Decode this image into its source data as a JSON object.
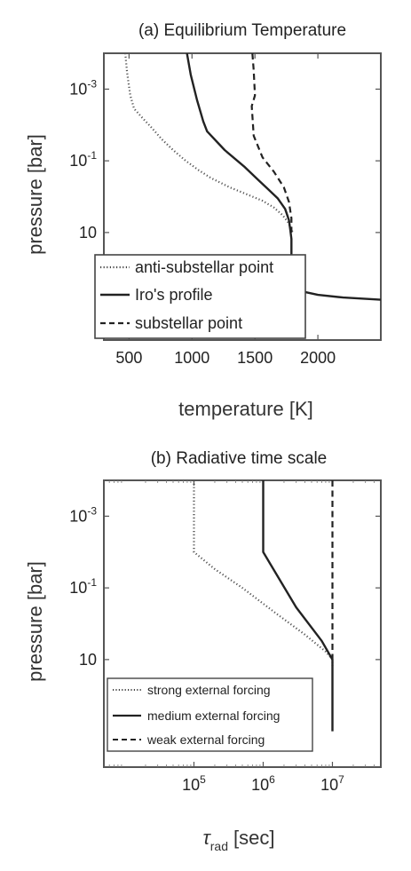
{
  "chart_data": [
    {
      "type": "line",
      "panel_id": "a",
      "title": "(a) Equilibrium Temperature",
      "xlabel": "temperature [K]",
      "ylabel": "pressure [bar]",
      "x_scale": "linear",
      "y_scale": "log",
      "y_reversed": true,
      "xlim": [
        300,
        2500
      ],
      "ylim": [
        0.0001,
        10000
      ],
      "x_ticks": [
        {
          "v": 500,
          "label": "500"
        },
        {
          "v": 1000,
          "label": "1000"
        },
        {
          "v": 1500,
          "label": "1500"
        },
        {
          "v": 2000,
          "label": "2000"
        }
      ],
      "y_ticks": [
        {
          "v": 0.001,
          "base": "10",
          "exp": "-3"
        },
        {
          "v": 0.1,
          "base": "10",
          "exp": "-1"
        },
        {
          "v": 10,
          "base": "10",
          "exp": ""
        }
      ],
      "legend_position": "bottom-left",
      "series": [
        {
          "name": "anti-substellar point",
          "dash": "dot",
          "x": [
            470,
            485,
            510,
            540,
            600,
            680,
            760,
            850,
            950,
            1050,
            1150,
            1300,
            1450,
            1560,
            1650,
            1720,
            1760,
            1790,
            1800
          ],
          "y": [
            0.0001,
            0.00035,
            0.0015,
            0.0035,
            0.006,
            0.012,
            0.025,
            0.05,
            0.1,
            0.18,
            0.3,
            0.55,
            0.9,
            1.3,
            2.0,
            3.3,
            5.0,
            8.0,
            10
          ]
        },
        {
          "name": "Iro's profile",
          "dash": "solid",
          "x": [
            960,
            990,
            1040,
            1090,
            1120,
            1260,
            1420,
            1530,
            1600,
            1680,
            1740,
            1770,
            1780,
            1790,
            1790,
            1790,
            1790,
            1800,
            1850,
            2000,
            2200,
            2500
          ],
          "y": [
            0.0001,
            0.0004,
            0.002,
            0.008,
            0.015,
            0.05,
            0.15,
            0.35,
            0.6,
            1.1,
            2.2,
            4.5,
            8,
            15,
            30,
            60,
            120,
            300,
            420,
            550,
            650,
            750
          ]
        },
        {
          "name": "substellar point",
          "dash": "dash",
          "x": [
            1480,
            1490,
            1500,
            1475,
            1490,
            1560,
            1650,
            1730,
            1770,
            1790,
            1790
          ],
          "y": [
            0.0001,
            0.0003,
            0.0015,
            0.003,
            0.02,
            0.08,
            0.2,
            0.55,
            1.4,
            4.0,
            10
          ]
        }
      ]
    },
    {
      "type": "line",
      "panel_id": "b",
      "title": "(b) Radiative time scale",
      "xlabel_main": "τ",
      "xlabel_sub": "rad",
      "xlabel_unit": "[sec]",
      "ylabel": "pressure [bar]",
      "x_scale": "log",
      "y_scale": "log",
      "y_reversed": true,
      "xlim": [
        5000,
        50000000
      ],
      "ylim": [
        0.0001,
        10000
      ],
      "x_ticks": [
        {
          "v": 100000,
          "base": "10",
          "exp": "5"
        },
        {
          "v": 1000000,
          "base": "10",
          "exp": "6"
        },
        {
          "v": 10000000,
          "base": "10",
          "exp": "7"
        }
      ],
      "y_ticks": [
        {
          "v": 0.001,
          "base": "10",
          "exp": "-3"
        },
        {
          "v": 0.1,
          "base": "10",
          "exp": "-1"
        },
        {
          "v": 10,
          "base": "10",
          "exp": ""
        }
      ],
      "legend_position": "bottom-left",
      "series": [
        {
          "name": "strong external forcing",
          "dash": "dot",
          "x": [
            100000,
            100000,
            200000,
            500000,
            1500000,
            4000000,
            8000000,
            10000000,
            10000000
          ],
          "y": [
            0.0001,
            0.01,
            0.03,
            0.1,
            0.5,
            2.0,
            6.0,
            10,
            15
          ]
        },
        {
          "name": "medium external forcing",
          "dash": "solid",
          "x": [
            1000000,
            1000000,
            3000000,
            7000000,
            10000000,
            10000000
          ],
          "y": [
            0.0001,
            0.01,
            0.35,
            3.0,
            10,
            1000
          ]
        },
        {
          "name": "weak external forcing",
          "dash": "dash",
          "x": [
            10000000,
            10000000
          ],
          "y": [
            0.0001,
            10
          ]
        }
      ]
    }
  ]
}
